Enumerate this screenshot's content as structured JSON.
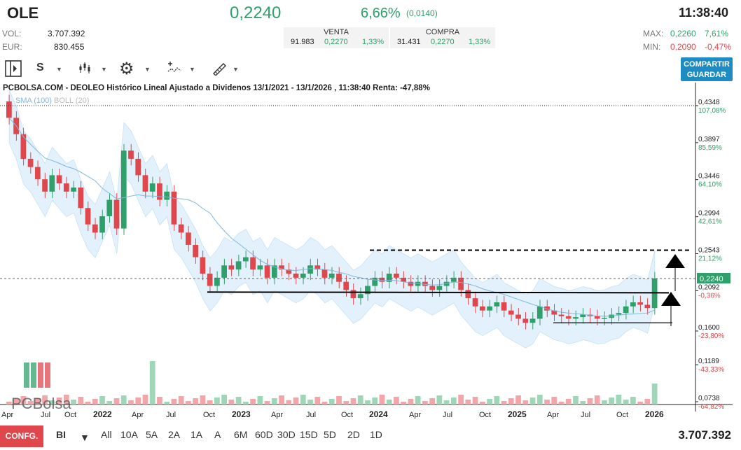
{
  "header": {
    "ticker": "OLE",
    "price": "0,2240",
    "change_pct": "6,66%",
    "change_abs": "(0,0140)",
    "time": "11:38:40"
  },
  "stats": {
    "vol_label": "VOL:",
    "vol_value": "3.707.392",
    "eur_label": "EUR:",
    "eur_value": "830.455",
    "max_label": "MAX:",
    "max_value": "0,2260",
    "max_pct": "7,61%",
    "min_label": "MIN:",
    "min_value": "0,2090",
    "min_pct": "-0,47%"
  },
  "quotes": {
    "venta": {
      "label": "VENTA",
      "qty": "91.983",
      "price": "0,2270",
      "pct": "1,33%"
    },
    "compra": {
      "label": "COMPRA",
      "qty": "31.431",
      "price": "0,2270",
      "pct": "1,33%"
    }
  },
  "toolbar": {
    "period": "S",
    "save_label_1": "COMPARTIR",
    "save_label_2": "GUARDAR"
  },
  "chart_data": {
    "type": "candlestick",
    "title": "PCBOLSA.COM - DEOLEO Histórico Lineal Ajustado a Dividenos 13/1/2021 - 13/1/2026 , 11:38:40 Renta: -47,88%",
    "legend": [
      "SMA (100)",
      "BOLL (20)"
    ],
    "watermark": "PCBolsa",
    "y_ticks": [
      {
        "price": "0,4348",
        "pct": "107,08%",
        "v": 0.4348
      },
      {
        "price": "0,3897",
        "pct": "85,59%",
        "v": 0.3897
      },
      {
        "price": "0,3446",
        "pct": "64,10%",
        "v": 0.3446
      },
      {
        "price": "0,2994",
        "pct": "42,61%",
        "v": 0.2994
      },
      {
        "price": "0,2543",
        "pct": "21,12%",
        "v": 0.2543
      },
      {
        "price": "0,2092",
        "pct": "-0,36%",
        "v": 0.2092
      },
      {
        "price": "0,1600",
        "pct": "-23,80%",
        "v": 0.16
      },
      {
        "price": "0,1189",
        "pct": "-43,33%",
        "v": 0.1189
      },
      {
        "price": "0,0738",
        "pct": "-64,82%",
        "v": 0.0738
      }
    ],
    "current_label": "0,2240",
    "current_value": 0.224,
    "reference_high": 0.4348,
    "x_labels": [
      "Apr",
      "Jul",
      "Oct",
      "2022",
      "Apr",
      "Jul",
      "Oct",
      "2023",
      "Apr",
      "Jul",
      "Oct",
      "2024",
      "Apr",
      "Jul",
      "Oct",
      "2025",
      "Apr",
      "Jul",
      "Oct",
      "2026"
    ],
    "x_bold": [
      "2022",
      "2023",
      "2024",
      "2025",
      "2026"
    ],
    "closes": [
      0.42,
      0.4,
      0.37,
      0.36,
      0.345,
      0.33,
      0.35,
      0.34,
      0.33,
      0.335,
      0.31,
      0.29,
      0.28,
      0.3,
      0.32,
      0.285,
      0.38,
      0.37,
      0.35,
      0.33,
      0.34,
      0.32,
      0.33,
      0.29,
      0.28,
      0.265,
      0.25,
      0.23,
      0.215,
      0.225,
      0.24,
      0.235,
      0.245,
      0.25,
      0.235,
      0.24,
      0.225,
      0.24,
      0.235,
      0.23,
      0.225,
      0.23,
      0.24,
      0.235,
      0.225,
      0.23,
      0.22,
      0.21,
      0.2,
      0.205,
      0.215,
      0.225,
      0.22,
      0.23,
      0.225,
      0.22,
      0.215,
      0.22,
      0.215,
      0.21,
      0.215,
      0.22,
      0.225,
      0.21,
      0.2,
      0.19,
      0.185,
      0.19,
      0.195,
      0.185,
      0.18,
      0.175,
      0.17,
      0.175,
      0.19,
      0.185,
      0.18,
      0.178,
      0.175,
      0.177,
      0.18,
      0.178,
      0.175,
      0.176,
      0.18,
      0.182,
      0.19,
      0.195,
      0.192,
      0.188,
      0.224
    ]
  },
  "bottom": {
    "config_label": "CONFG.",
    "mode": "BI",
    "ranges": [
      "All",
      "10A",
      "5A",
      "2A",
      "1A",
      "A",
      "6M",
      "60D",
      "30D",
      "15D",
      "5D",
      "2D",
      "1D"
    ],
    "total_volume": "3.707.392"
  },
  "colors": {
    "up": "#2fa06a",
    "down": "#e0474c",
    "band": "#d6ecfb",
    "accent": "#1e8bc3"
  }
}
